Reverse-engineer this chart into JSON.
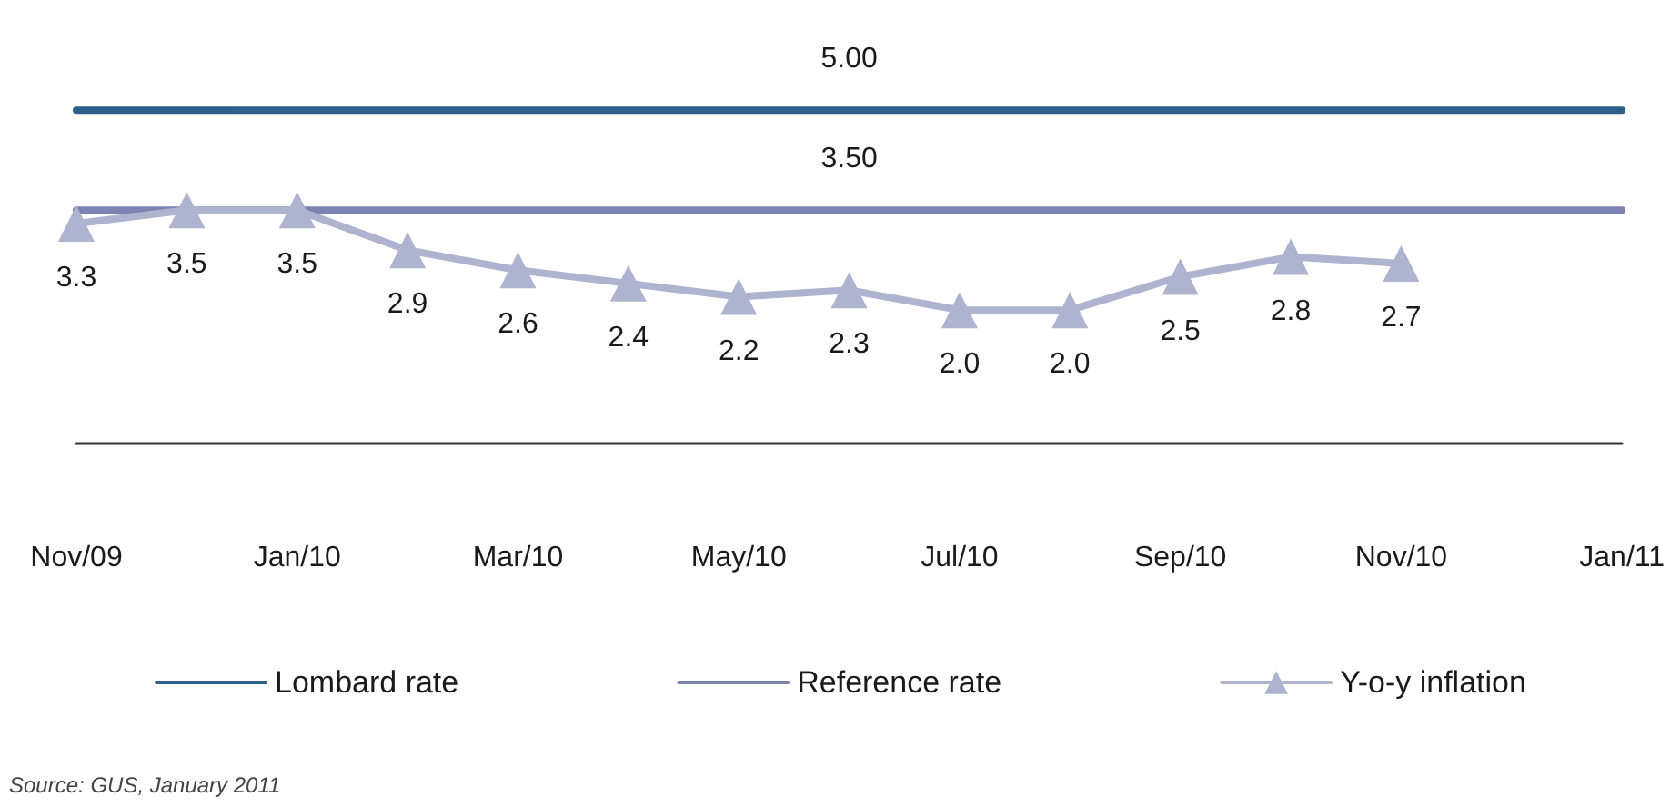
{
  "chart_data": {
    "type": "line",
    "categories": [
      "Nov/09",
      null,
      "Jan/10",
      null,
      "Mar/10",
      null,
      "May/10",
      null,
      "Jul/10",
      null,
      "Sep/10",
      null,
      "Nov/10",
      null,
      "Jan/11"
    ],
    "series": [
      {
        "name": "Lombard rate",
        "color": "#2e5f8a",
        "marker": "none",
        "values": [
          5,
          5,
          5,
          5,
          5,
          5,
          5,
          5,
          5,
          5,
          5,
          5,
          5,
          5,
          5
        ],
        "value_labels": [
          null,
          null,
          null,
          null,
          null,
          null,
          null,
          "5.00",
          null,
          null,
          null,
          null,
          null,
          null,
          null
        ]
      },
      {
        "name": "Reference rate",
        "color": "#7b84b0",
        "marker": "none",
        "values": [
          3.5,
          3.5,
          3.5,
          3.5,
          3.5,
          3.5,
          3.5,
          3.5,
          3.5,
          3.5,
          3.5,
          3.5,
          3.5,
          3.5,
          3.5
        ],
        "value_labels": [
          null,
          null,
          null,
          null,
          null,
          null,
          null,
          "3.50",
          null,
          null,
          null,
          null,
          null,
          null,
          null
        ]
      },
      {
        "name": "Y-o-y inflation",
        "color": "#aeb3cf",
        "marker": "triangle",
        "values": [
          3.3,
          3.5,
          3.5,
          2.9,
          2.6,
          2.4,
          2.2,
          2.3,
          2.0,
          2.0,
          2.5,
          2.8,
          2.7,
          null,
          null
        ],
        "value_labels": [
          "3.3",
          "3.5",
          "3.5",
          "2.9",
          "2.6",
          "2.4",
          "2.2",
          "2.3",
          "2.0",
          "2.0",
          "2.5",
          "2.8",
          "2.7",
          null,
          null
        ]
      }
    ],
    "tick_labels": "x",
    "grid": false,
    "legend": "bottom",
    "line_style": "solid",
    "annotations": [
      "Source: GUS, January 2011"
    ]
  }
}
